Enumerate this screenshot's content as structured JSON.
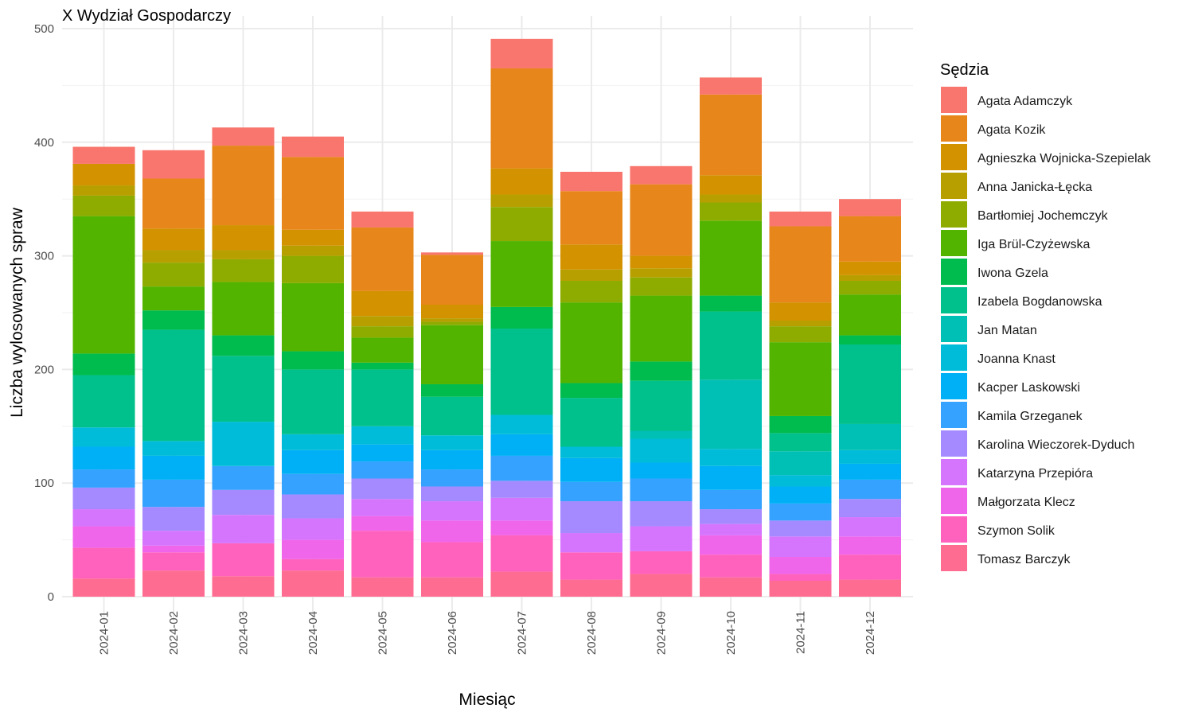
{
  "chart_data": {
    "type": "bar",
    "stacked": true,
    "title": "X Wydział Gospodarczy",
    "xlabel": "Miesiąc",
    "ylabel": "Liczba wylosowanych spraw",
    "ylim": [
      0,
      500
    ],
    "yticks": [
      0,
      100,
      200,
      300,
      400,
      500
    ],
    "grid": true,
    "legend_title": "Sędzia",
    "legend_position": "right",
    "categories": [
      "2024-01",
      "2024-02",
      "2024-03",
      "2024-04",
      "2024-05",
      "2024-06",
      "2024-07",
      "2024-08",
      "2024-09",
      "2024-10",
      "2024-11",
      "2024-12"
    ],
    "series": [
      {
        "name": "Tomasz Barczyk",
        "color": "#FF6C91",
        "values": [
          16,
          23,
          18,
          23,
          17,
          17,
          22,
          15,
          20,
          17,
          14,
          15
        ]
      },
      {
        "name": "Szymon Solik",
        "color": "#FF62BC",
        "values": [
          27,
          16,
          29,
          10,
          41,
          31,
          32,
          24,
          20,
          20,
          6,
          22
        ]
      },
      {
        "name": "Małgorzata Klecz",
        "color": "#F066EA",
        "values": [
          19,
          6,
          0,
          17,
          13,
          19,
          13,
          0,
          0,
          17,
          15,
          16
        ]
      },
      {
        "name": "Katarzyna Przepióra",
        "color": "#D575FE",
        "values": [
          15,
          13,
          25,
          19,
          15,
          17,
          20,
          17,
          22,
          10,
          18,
          17
        ]
      },
      {
        "name": "Karolina Wieczorek-Dyduch",
        "color": "#A58AFF",
        "values": [
          19,
          21,
          22,
          21,
          18,
          13,
          15,
          28,
          22,
          13,
          14,
          16
        ]
      },
      {
        "name": "Kamila Grzeganek",
        "color": "#35A2FF",
        "values": [
          16,
          24,
          21,
          18,
          15,
          15,
          22,
          17,
          20,
          17,
          15,
          17
        ]
      },
      {
        "name": "Kacper Laskowski",
        "color": "#00B0F6",
        "values": [
          20,
          21,
          0,
          21,
          15,
          17,
          19,
          21,
          14,
          21,
          15,
          14
        ]
      },
      {
        "name": "Joanna Knast",
        "color": "#00BCD8",
        "values": [
          17,
          13,
          39,
          14,
          16,
          13,
          17,
          10,
          21,
          15,
          10,
          12
        ]
      },
      {
        "name": "Jan Matan",
        "color": "#00BFB4",
        "values": [
          0,
          0,
          0,
          0,
          0,
          0,
          0,
          0,
          7,
          61,
          21,
          23
        ]
      },
      {
        "name": "Izabela Bogdanowska",
        "color": "#00C08B",
        "values": [
          46,
          98,
          58,
          57,
          50,
          34,
          76,
          43,
          44,
          60,
          16,
          70
        ]
      },
      {
        "name": "Iwona Gzela",
        "color": "#00BB4E",
        "values": [
          19,
          17,
          18,
          16,
          6,
          11,
          19,
          13,
          17,
          14,
          15,
          8
        ]
      },
      {
        "name": "Iga Brül-Czyżewska",
        "color": "#53B400",
        "values": [
          121,
          21,
          47,
          60,
          22,
          52,
          58,
          71,
          58,
          66,
          65,
          36
        ]
      },
      {
        "name": "Bartłomiej Jochemczyk",
        "color": "#8EAB00",
        "values": [
          18,
          21,
          20,
          24,
          10,
          3,
          30,
          19,
          16,
          16,
          14,
          12
        ]
      },
      {
        "name": "Anna Janicka-Łęcka",
        "color": "#B79F00",
        "values": [
          9,
          11,
          8,
          9,
          9,
          3,
          11,
          10,
          8,
          7,
          5,
          5
        ]
      },
      {
        "name": "Agnieszka Wojnicka-Szepielak",
        "color": "#D39200",
        "values": [
          19,
          19,
          22,
          14,
          22,
          12,
          23,
          22,
          11,
          17,
          16,
          12
        ]
      },
      {
        "name": "Agata Kozik",
        "color": "#E7861A",
        "values": [
          0,
          44,
          70,
          64,
          56,
          44,
          88,
          47,
          63,
          71,
          67,
          40
        ]
      },
      {
        "name": "Agata Adamczyk",
        "color": "#F8766D",
        "values": [
          15,
          25,
          16,
          18,
          14,
          2,
          26,
          17,
          16,
          15,
          13,
          15
        ]
      }
    ]
  }
}
